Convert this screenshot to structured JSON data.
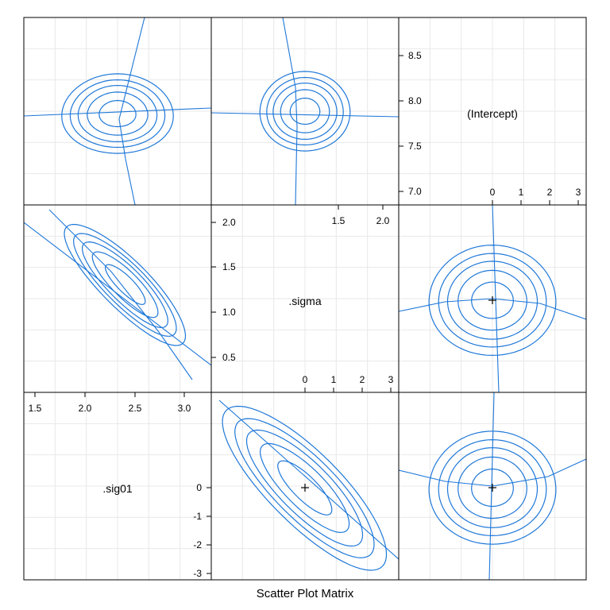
{
  "chart_data": {
    "type": "scatter",
    "title": "",
    "xlabel": "Scatter Plot Matrix",
    "panel_grid": "3x3",
    "grid": true,
    "line_color": "#1f78d8",
    "variables": [
      {
        "name": "(Intercept)",
        "ticks": [
          7.0,
          7.5,
          8.0,
          8.5
        ],
        "zeta_ticks": [
          0,
          1,
          2,
          3
        ]
      },
      {
        "name": ".sigma",
        "ticks": [
          0.5,
          1.0,
          1.5,
          2.0
        ],
        "zeta_ticks": [
          0,
          1,
          2,
          3
        ]
      },
      {
        "name": ".sig01",
        "ticks": [
          1.5,
          2.0,
          2.5,
          3.0
        ],
        "zeta_ticks": [
          -3,
          -2,
          -1,
          0
        ]
      }
    ],
    "diag_tick_labels": {
      "intercept_y": [
        "7.0",
        "7.5",
        "8.0",
        "8.5"
      ],
      "intercept_x": [
        "0",
        "1",
        "2",
        "3"
      ],
      "sigma_y": [
        "0.5",
        "1.0",
        "1.5",
        "2.0"
      ],
      "sigma_x_top": [
        "1.5",
        "2.0"
      ],
      "sigma_x": [
        "0",
        "1",
        "2",
        "3"
      ],
      "sig01_x": [
        "1.5",
        "2.0",
        "2.5",
        "3.0"
      ],
      "sig01_y": [
        "0",
        "-1",
        "-2",
        "-3"
      ]
    },
    "contour_levels": [
      1,
      1.645,
      2.146,
      2.576,
      3.035
    ],
    "profile_center": [
      0,
      0
    ]
  }
}
